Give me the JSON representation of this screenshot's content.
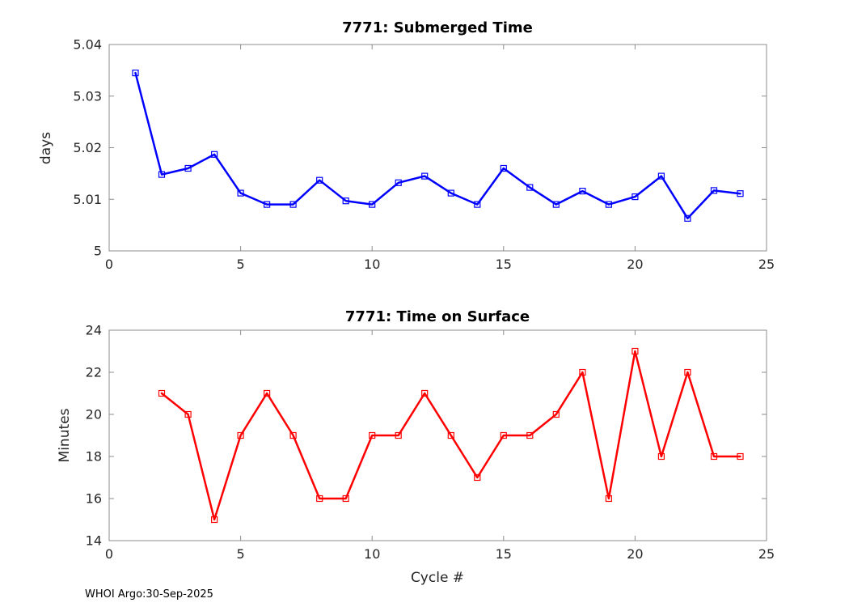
{
  "footer": {
    "credit": "WHOI Argo:30-Sep-2025"
  },
  "styles": {
    "background": "#ffffff",
    "box_color": "#8c8c8c",
    "tick_label_color": "#262626",
    "top_line_color": "#0000ff",
    "bottom_line_color": "#ff0000"
  },
  "chart_data": [
    {
      "type": "line",
      "title": "7771: Submerged Time",
      "xlabel": "",
      "ylabel": "days",
      "marker": "square",
      "grid": false,
      "legend": null,
      "color": "#0000ff",
      "x": [
        1,
        2,
        3,
        4,
        5,
        6,
        7,
        8,
        9,
        10,
        11,
        12,
        13,
        14,
        15,
        16,
        17,
        18,
        19,
        20,
        21,
        22,
        23,
        24
      ],
      "values": [
        5.0345,
        5.0148,
        5.016,
        5.0187,
        5.0112,
        5.009,
        5.009,
        5.0137,
        5.0097,
        5.009,
        5.0132,
        5.0145,
        5.0112,
        5.009,
        5.016,
        5.0123,
        5.009,
        5.0116,
        5.009,
        5.0105,
        5.0145,
        5.0063,
        5.0117,
        5.0111
      ],
      "xlim": [
        0,
        25
      ],
      "ylim": [
        5,
        5.04
      ],
      "xticks": [
        0,
        5,
        10,
        15,
        20,
        25
      ],
      "xtick_labels": [
        "0",
        "5",
        "10",
        "15",
        "20",
        "25"
      ],
      "yticks": [
        5,
        5.01,
        5.02,
        5.03,
        5.04
      ],
      "ytick_labels": [
        "5",
        "5.01",
        "5.02",
        "5.03",
        "5.04"
      ]
    },
    {
      "type": "line",
      "title": "7771: Time on Surface",
      "xlabel": "Cycle #",
      "ylabel": "Minutes",
      "marker": "square",
      "grid": false,
      "legend": null,
      "color": "#ff0000",
      "x": [
        2,
        3,
        4,
        5,
        6,
        7,
        8,
        9,
        10,
        11,
        12,
        13,
        14,
        15,
        16,
        17,
        18,
        19,
        20,
        21,
        22,
        23,
        24
      ],
      "values": [
        21,
        20,
        15,
        19,
        21,
        19,
        16,
        16,
        19,
        19,
        21,
        19,
        17,
        19,
        19,
        20,
        22,
        16,
        23,
        18,
        22,
        18,
        18
      ],
      "xlim": [
        0,
        25
      ],
      "ylim": [
        14,
        24
      ],
      "xticks": [
        0,
        5,
        10,
        15,
        20,
        25
      ],
      "xtick_labels": [
        "0",
        "5",
        "10",
        "15",
        "20",
        "25"
      ],
      "yticks": [
        14,
        16,
        18,
        20,
        22,
        24
      ],
      "ytick_labels": [
        "14",
        "16",
        "18",
        "20",
        "22",
        "24"
      ]
    }
  ]
}
